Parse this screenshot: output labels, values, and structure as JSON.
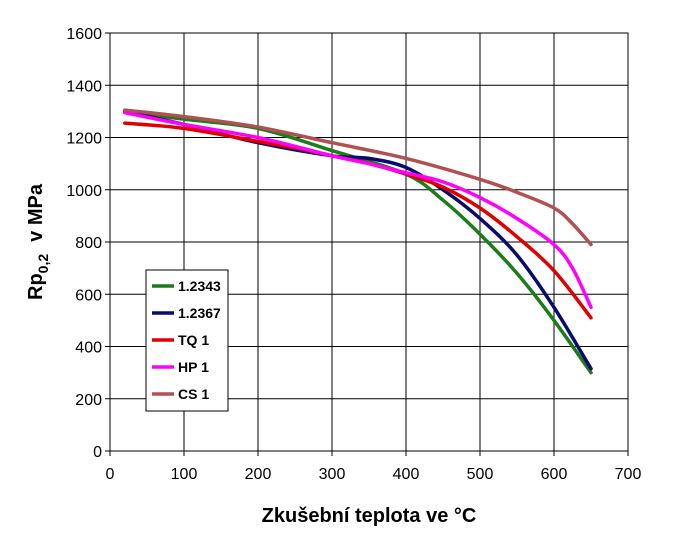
{
  "chart_data": {
    "type": "line",
    "title": "",
    "xlabel": "Zkušební teplota ve °C",
    "ylabel": {
      "main": "Rp",
      "sub": "0,2",
      "unit": "v MPa"
    },
    "xlim": [
      0,
      700
    ],
    "ylim": [
      0,
      1600
    ],
    "xticks": [
      0,
      100,
      200,
      300,
      400,
      500,
      600,
      700
    ],
    "yticks": [
      0,
      200,
      400,
      600,
      800,
      1000,
      1200,
      1400,
      1600
    ],
    "grid": true,
    "legend_position": "bottom-left",
    "series": [
      {
        "name": "1.2343",
        "color": "#1a7d1a",
        "x": [
          20,
          100,
          200,
          300,
          400,
          450,
          500,
          550,
          600,
          650
        ],
        "y": [
          1300,
          1270,
          1235,
          1150,
          1060,
          960,
          830,
          680,
          500,
          300
        ]
      },
      {
        "name": "1.2367",
        "color": "#0a0a6e",
        "x": [
          20,
          100,
          200,
          300,
          350,
          400,
          450,
          500,
          550,
          600,
          650
        ],
        "y": [
          1300,
          1250,
          1180,
          1130,
          1120,
          1085,
          1000,
          890,
          750,
          550,
          315
        ]
      },
      {
        "name": "TQ 1",
        "color": "#e00000",
        "x": [
          20,
          100,
          200,
          250,
          300,
          350,
          400,
          450,
          500,
          550,
          600,
          650
        ],
        "y": [
          1255,
          1235,
          1185,
          1160,
          1130,
          1100,
          1060,
          1010,
          930,
          820,
          690,
          510
        ]
      },
      {
        "name": "HP 1",
        "color": "#ff00ff",
        "x": [
          20,
          100,
          200,
          300,
          350,
          400,
          450,
          500,
          550,
          600,
          625,
          650
        ],
        "y": [
          1295,
          1250,
          1200,
          1130,
          1100,
          1065,
          1030,
          970,
          890,
          790,
          700,
          550
        ]
      },
      {
        "name": "CS 1",
        "color": "#b05050",
        "x": [
          20,
          100,
          200,
          300,
          400,
          500,
          550,
          600,
          625,
          650
        ],
        "y": [
          1305,
          1280,
          1240,
          1180,
          1120,
          1040,
          990,
          930,
          870,
          790
        ]
      }
    ]
  }
}
